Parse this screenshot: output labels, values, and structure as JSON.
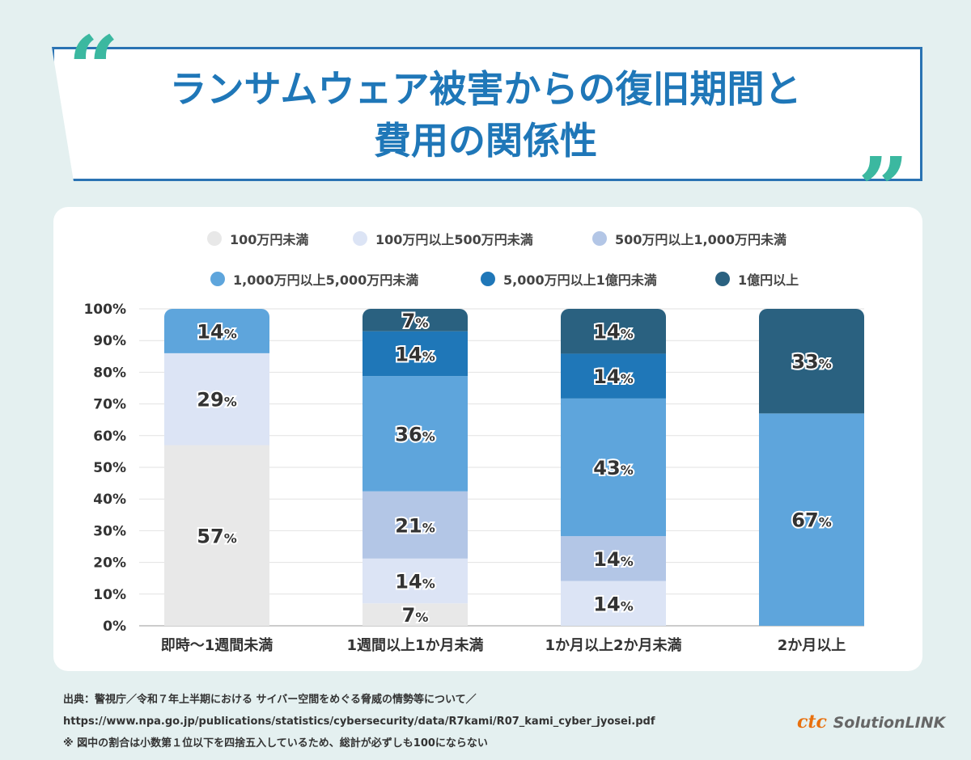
{
  "title_line1": "ランサムウェア被害からの復旧期間と",
  "title_line2": "費用の関係性",
  "chart_data": {
    "type": "bar",
    "stacked": true,
    "categories": [
      "即時～1週間未満",
      "1週間以上1か月未満",
      "1か月以上2か月未満",
      "2か月以上"
    ],
    "series": [
      {
        "name": "100万円未満",
        "color": "#e8e8e8",
        "values": [
          57,
          7,
          0,
          0
        ]
      },
      {
        "name": "100万円以上500万円未満",
        "color": "#dce4f5",
        "values": [
          29,
          14,
          14,
          0
        ]
      },
      {
        "name": "500万円以上1,000万円未満",
        "color": "#b3c6e6",
        "values": [
          0,
          21,
          14,
          0
        ]
      },
      {
        "name": "1,000万円以上5,000万円未満",
        "color": "#5ea5dc",
        "values": [
          14,
          36,
          43,
          67
        ]
      },
      {
        "name": "5,000万円以上1億円未満",
        "color": "#1f77b8",
        "values": [
          0,
          14,
          14,
          0
        ]
      },
      {
        "name": "1億円以上",
        "color": "#2a6180",
        "values": [
          0,
          7,
          14,
          33
        ]
      }
    ],
    "yticks": [
      "0%",
      "10%",
      "20%",
      "30%",
      "40%",
      "50%",
      "60%",
      "70%",
      "80%",
      "90%",
      "100%"
    ],
    "ylim": [
      0,
      100
    ],
    "unit": "%",
    "grid": true,
    "legend": "top"
  },
  "notes": [
    "出典：警視庁／令和７年上半期における サイバー空間をめぐる脅威の情勢等について／",
    "https://www.npa.go.jp/publications/statistics/cybersecurity/data/R7kami/R07_kami_cyber_jyosei.pdf",
    "※ 図中の割合は小数第１位以下を四捨五入しているため、総計が必ずしも100にならない"
  ],
  "logo": {
    "ctc": "ctc",
    "name": "SolutionLINK"
  }
}
